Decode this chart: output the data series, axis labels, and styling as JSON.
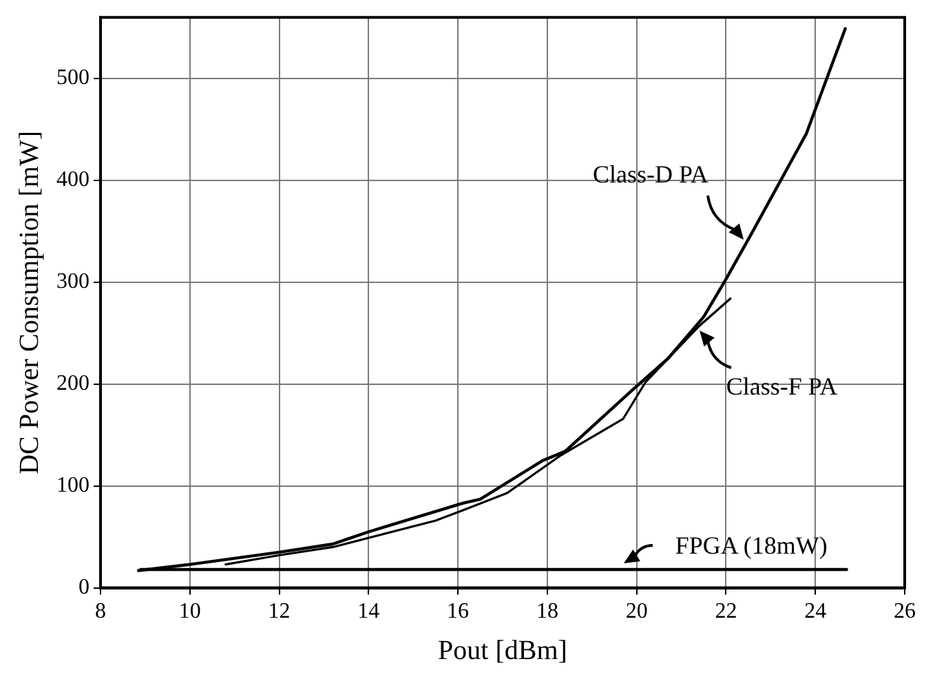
{
  "chart_data": {
    "type": "line",
    "xlabel": "Pout [dBm]",
    "ylabel": "DC Power Consumption [mW]",
    "xlim": [
      8,
      26
    ],
    "xticks": [
      8,
      10,
      12,
      14,
      16,
      18,
      20,
      22,
      24,
      26
    ],
    "ylim": [
      0,
      560
    ],
    "yticks": [
      0,
      100,
      200,
      300,
      400,
      500
    ],
    "grid": true,
    "legend": false,
    "marker": "none",
    "line_style": "solid",
    "series": [
      {
        "color": "#000000",
        "x": [
          8.85,
          10,
          12,
          13.2,
          14,
          16.1,
          16.5,
          17.9,
          18.4,
          19.9,
          20.7,
          21.5,
          22,
          22.6,
          23.8,
          24.67
        ],
        "values": [
          17,
          23,
          35,
          43,
          55,
          83,
          87,
          125,
          134,
          194,
          225,
          266,
          303,
          350,
          446,
          549
        ]
      },
      {
        "color": "#000000",
        "x": [
          10.8,
          12,
          13.2,
          15.5,
          16.1,
          17.1,
          18.3,
          19.7,
          20.2,
          21.4,
          22.1
        ],
        "values": [
          23,
          32,
          40,
          66,
          76,
          93,
          130,
          166,
          202,
          257,
          284
        ]
      },
      {
        "color": "#000000",
        "x": [
          8.9,
          24.7
        ],
        "values": [
          18,
          18
        ]
      }
    ],
    "annotations": [
      {
        "text": "Class-D PA",
        "x": 22.5,
        "y": 342
      },
      {
        "text": "Class-F PA",
        "x": 21.4,
        "y": 257
      },
      {
        "text": "FPGA (18mW)",
        "x": 19.7,
        "y": 18
      }
    ]
  }
}
